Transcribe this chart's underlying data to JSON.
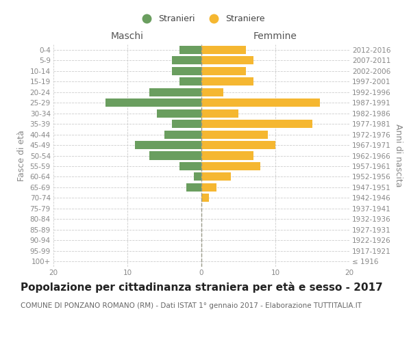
{
  "age_groups": [
    "100+",
    "95-99",
    "90-94",
    "85-89",
    "80-84",
    "75-79",
    "70-74",
    "65-69",
    "60-64",
    "55-59",
    "50-54",
    "45-49",
    "40-44",
    "35-39",
    "30-34",
    "25-29",
    "20-24",
    "15-19",
    "10-14",
    "5-9",
    "0-4"
  ],
  "birth_years": [
    "≤ 1916",
    "1917-1921",
    "1922-1926",
    "1927-1931",
    "1932-1936",
    "1937-1941",
    "1942-1946",
    "1947-1951",
    "1952-1956",
    "1957-1961",
    "1962-1966",
    "1967-1971",
    "1972-1976",
    "1977-1981",
    "1982-1986",
    "1987-1991",
    "1992-1996",
    "1997-2001",
    "2002-2006",
    "2007-2011",
    "2012-2016"
  ],
  "males": [
    0,
    0,
    0,
    0,
    0,
    0,
    0,
    2,
    1,
    3,
    7,
    9,
    5,
    4,
    6,
    13,
    7,
    3,
    4,
    4,
    3
  ],
  "females": [
    0,
    0,
    0,
    0,
    0,
    0,
    1,
    2,
    4,
    8,
    7,
    10,
    9,
    15,
    5,
    16,
    3,
    7,
    6,
    7,
    6
  ],
  "male_color": "#6a9e5f",
  "female_color": "#f5b731",
  "xlim": 20,
  "title": "Popolazione per cittadinanza straniera per età e sesso - 2017",
  "subtitle": "COMUNE DI PONZANO ROMANO (RM) - Dati ISTAT 1° gennaio 2017 - Elaborazione TUTTITALIA.IT",
  "ylabel_left": "Fasce di età",
  "ylabel_right": "Anni di nascita",
  "header_left": "Maschi",
  "header_right": "Femmine",
  "legend_male": "Stranieri",
  "legend_female": "Straniere",
  "background_color": "#ffffff",
  "grid_color": "#cccccc",
  "text_color": "#888888",
  "tick_fontsize": 7.5,
  "label_fontsize": 9,
  "header_fontsize": 10,
  "title_fontsize": 11,
  "subtitle_fontsize": 7.5
}
